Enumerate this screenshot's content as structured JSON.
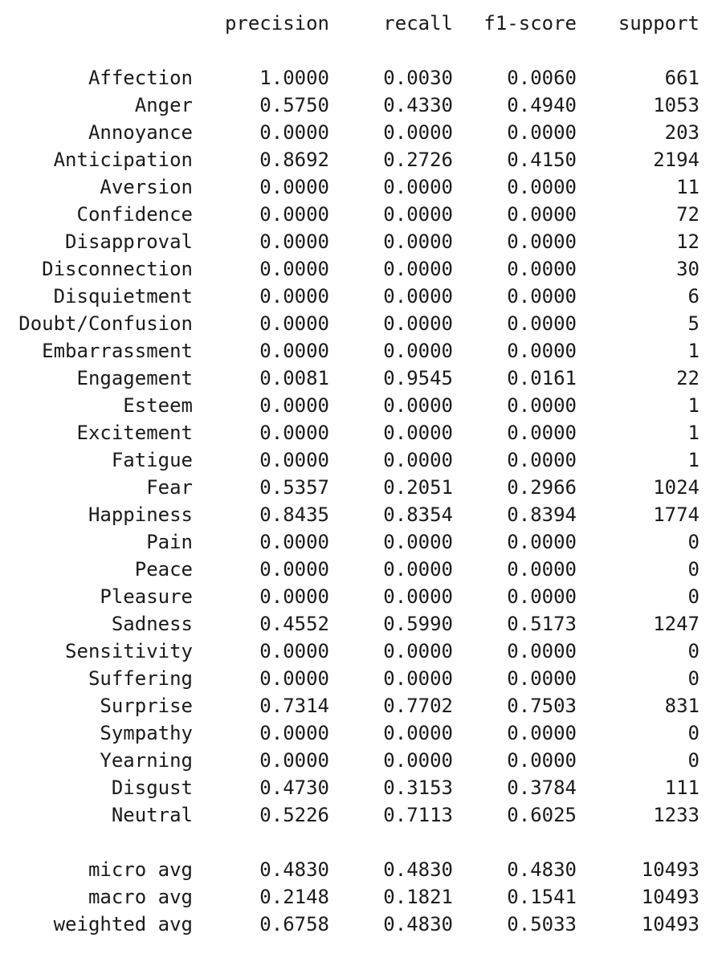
{
  "header": {
    "precision": "precision",
    "recall": "recall",
    "f1": "f1-score",
    "support": "support"
  },
  "rows": [
    {
      "label": "Affection",
      "precision": "1.0000",
      "recall": "0.0030",
      "f1": "0.0060",
      "support": "661"
    },
    {
      "label": "Anger",
      "precision": "0.5750",
      "recall": "0.4330",
      "f1": "0.4940",
      "support": "1053"
    },
    {
      "label": "Annoyance",
      "precision": "0.0000",
      "recall": "0.0000",
      "f1": "0.0000",
      "support": "203"
    },
    {
      "label": "Anticipation",
      "precision": "0.8692",
      "recall": "0.2726",
      "f1": "0.4150",
      "support": "2194"
    },
    {
      "label": "Aversion",
      "precision": "0.0000",
      "recall": "0.0000",
      "f1": "0.0000",
      "support": "11"
    },
    {
      "label": "Confidence",
      "precision": "0.0000",
      "recall": "0.0000",
      "f1": "0.0000",
      "support": "72"
    },
    {
      "label": "Disapproval",
      "precision": "0.0000",
      "recall": "0.0000",
      "f1": "0.0000",
      "support": "12"
    },
    {
      "label": "Disconnection",
      "precision": "0.0000",
      "recall": "0.0000",
      "f1": "0.0000",
      "support": "30"
    },
    {
      "label": "Disquietment",
      "precision": "0.0000",
      "recall": "0.0000",
      "f1": "0.0000",
      "support": "6"
    },
    {
      "label": "Doubt/Confusion",
      "precision": "0.0000",
      "recall": "0.0000",
      "f1": "0.0000",
      "support": "5"
    },
    {
      "label": "Embarrassment",
      "precision": "0.0000",
      "recall": "0.0000",
      "f1": "0.0000",
      "support": "1"
    },
    {
      "label": "Engagement",
      "precision": "0.0081",
      "recall": "0.9545",
      "f1": "0.0161",
      "support": "22"
    },
    {
      "label": "Esteem",
      "precision": "0.0000",
      "recall": "0.0000",
      "f1": "0.0000",
      "support": "1"
    },
    {
      "label": "Excitement",
      "precision": "0.0000",
      "recall": "0.0000",
      "f1": "0.0000",
      "support": "1"
    },
    {
      "label": "Fatigue",
      "precision": "0.0000",
      "recall": "0.0000",
      "f1": "0.0000",
      "support": "1"
    },
    {
      "label": "Fear",
      "precision": "0.5357",
      "recall": "0.2051",
      "f1": "0.2966",
      "support": "1024"
    },
    {
      "label": "Happiness",
      "precision": "0.8435",
      "recall": "0.8354",
      "f1": "0.8394",
      "support": "1774"
    },
    {
      "label": "Pain",
      "precision": "0.0000",
      "recall": "0.0000",
      "f1": "0.0000",
      "support": "0"
    },
    {
      "label": "Peace",
      "precision": "0.0000",
      "recall": "0.0000",
      "f1": "0.0000",
      "support": "0"
    },
    {
      "label": "Pleasure",
      "precision": "0.0000",
      "recall": "0.0000",
      "f1": "0.0000",
      "support": "0"
    },
    {
      "label": "Sadness",
      "precision": "0.4552",
      "recall": "0.5990",
      "f1": "0.5173",
      "support": "1247"
    },
    {
      "label": "Sensitivity",
      "precision": "0.0000",
      "recall": "0.0000",
      "f1": "0.0000",
      "support": "0"
    },
    {
      "label": "Suffering",
      "precision": "0.0000",
      "recall": "0.0000",
      "f1": "0.0000",
      "support": "0"
    },
    {
      "label": "Surprise",
      "precision": "0.7314",
      "recall": "0.7702",
      "f1": "0.7503",
      "support": "831"
    },
    {
      "label": "Sympathy",
      "precision": "0.0000",
      "recall": "0.0000",
      "f1": "0.0000",
      "support": "0"
    },
    {
      "label": "Yearning",
      "precision": "0.0000",
      "recall": "0.0000",
      "f1": "0.0000",
      "support": "0"
    },
    {
      "label": "Disgust",
      "precision": "0.4730",
      "recall": "0.3153",
      "f1": "0.3784",
      "support": "111"
    },
    {
      "label": "Neutral",
      "precision": "0.5226",
      "recall": "0.7113",
      "f1": "0.6025",
      "support": "1233"
    }
  ],
  "averages": [
    {
      "label": "micro avg",
      "precision": "0.4830",
      "recall": "0.4830",
      "f1": "0.4830",
      "support": "10493"
    },
    {
      "label": "macro avg",
      "precision": "0.2148",
      "recall": "0.1821",
      "f1": "0.1541",
      "support": "10493"
    },
    {
      "label": "weighted avg",
      "precision": "0.6758",
      "recall": "0.4830",
      "f1": "0.5033",
      "support": "10493"
    }
  ]
}
